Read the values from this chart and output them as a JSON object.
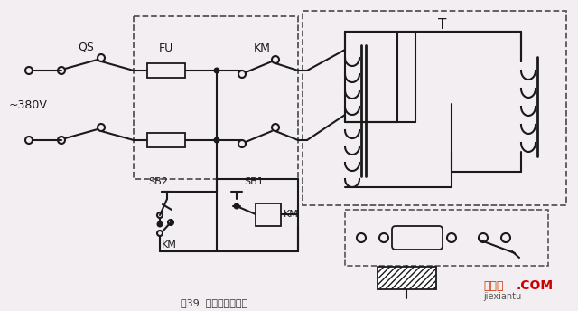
{
  "bg_color": "#f2eef2",
  "line_color": "#1a1a1a",
  "dashed_color": "#555555",
  "lw": 1.5,
  "lw_thick": 2.0,
  "label_QS": "QS",
  "label_FU": "FU",
  "label_KM": "KM",
  "label_T": "T",
  "label_380V": "~380V",
  "label_SB2": "SB2",
  "label_SB1": "SB1",
  "label_KM_coil": "KM",
  "label_KM_contact": "KM",
  "title": "图39  电焊机接线方法",
  "wm_red": "接线图",
  "wm_com": ".COM",
  "wm_small": "jiexiantu"
}
